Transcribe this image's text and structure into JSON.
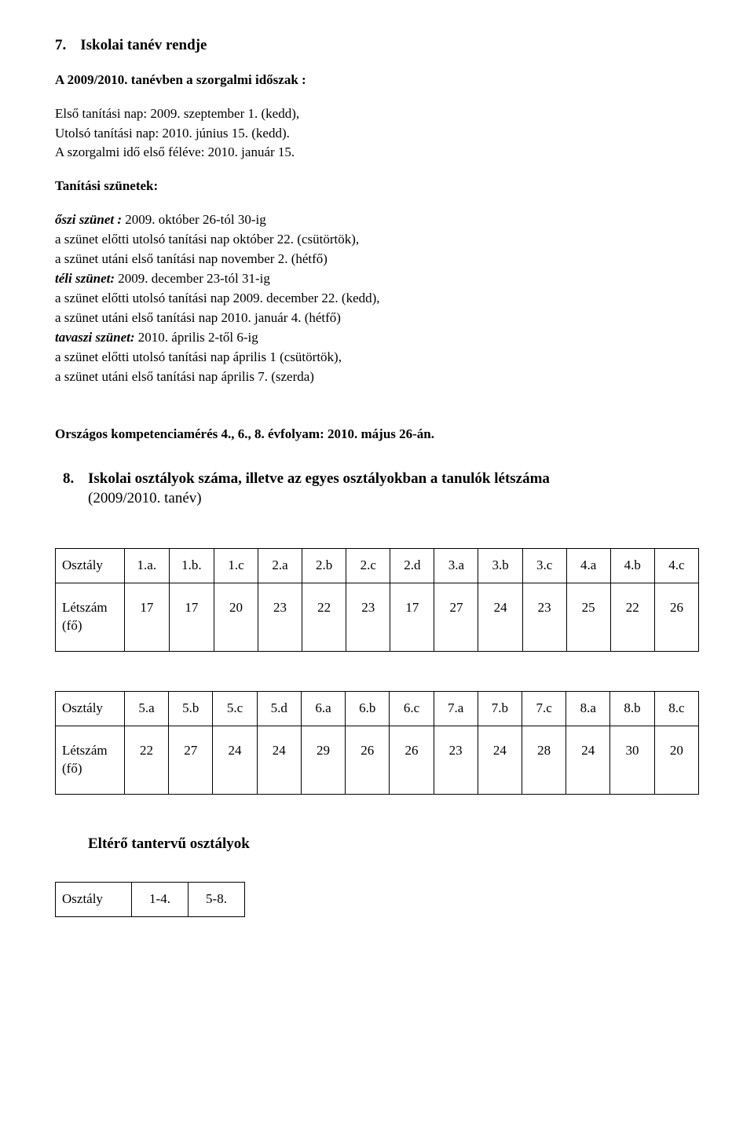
{
  "section7": {
    "number": "7.",
    "title": "Iskolai tanév rendje",
    "subtitle": "A 2009/2010. tanévben a szorgalmi időszak :",
    "first_day": "Első tanítási nap:  2009. szeptember 1. (kedd),",
    "last_day": "Utolsó tanítási nap: 2010. június 15. (kedd).",
    "first_half": "A szorgalmi idő első féléve: 2010. január 15.",
    "breaks_heading": "Tanítási szünetek:",
    "autumn_label": "őszi szünet :",
    "autumn_value": "  2009. október 26-tól 30-ig",
    "autumn_before": "a szünet előtti utolsó tanítási nap október 22. (csütörtök),",
    "autumn_after": "a szünet utáni első tanítási nap november 2. (hétfő)",
    "winter_label": "téli szünet:",
    "winter_value": "    2009. december 23-tól 31-ig",
    "winter_before": "a szünet előtti utolsó tanítási nap 2009. december 22. (kedd),",
    "winter_after": "a szünet utáni első tanítási nap 2010. január 4. (hétfő)",
    "spring_label": "tavaszi szünet:",
    "spring_value": "  2010. április 2-től 6-ig",
    "spring_before": "a szünet előtti utolsó tanítási nap április 1 (csütörtök),",
    "spring_after": "a szünet utáni első tanítási nap április 7. (szerda)",
    "competence": "Országos kompetenciamérés 4., 6., 8. évfolyam:  2010. május 26-án."
  },
  "section8": {
    "number": "8.",
    "title": "Iskolai osztályok száma, illetve az egyes osztályokban a tanulók létszáma",
    "subtitle": "(2009/2010. tanév)"
  },
  "table1": {
    "row_label1": "Osztály",
    "row_label2": "Létszám (fő)",
    "headers": [
      "1.a.",
      "1.b.",
      "1.c",
      "2.a",
      "2.b",
      "2.c",
      "2.d",
      "3.a",
      "3.b",
      "3.c",
      "4.a",
      "4.b",
      "4.c"
    ],
    "values": [
      "17",
      "17",
      "20",
      "23",
      "22",
      "23",
      "17",
      "27",
      "24",
      "23",
      "25",
      "22",
      "26"
    ]
  },
  "table2": {
    "row_label1": "Osztály",
    "row_label2": "Létszám (fő)",
    "headers": [
      "5.a",
      "5.b",
      "5.c",
      "5.d",
      "6.a",
      "6.b",
      "6.c",
      "7.a",
      "7.b",
      "7.c",
      "8.a",
      "8.b",
      "8.c"
    ],
    "values": [
      "22",
      "27",
      "24",
      "24",
      "29",
      "26",
      "26",
      "23",
      "24",
      "28",
      "24",
      "30",
      "20"
    ]
  },
  "divergent": {
    "title": "Eltérő tantervű osztályok",
    "row_label": "Osztály",
    "cols": [
      "1-4.",
      "5-8."
    ]
  }
}
